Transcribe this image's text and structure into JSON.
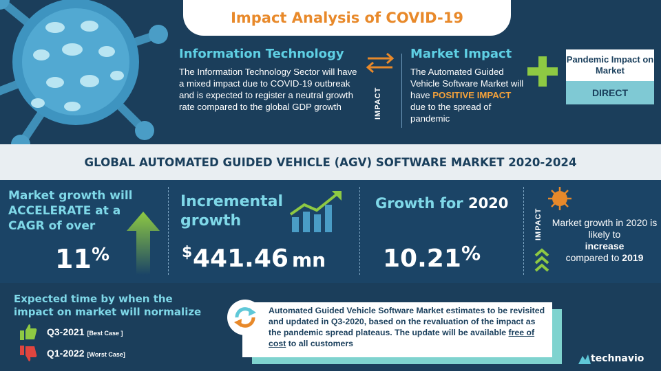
{
  "header": {
    "title": "Impact Analysis of COVID-19"
  },
  "information_technology": {
    "heading": "Information Technology",
    "body": "The Information Technology Sector will have a mixed impact due to COVID-19 outbreak and is expected to register a neutral growth rate compared to the global GDP growth"
  },
  "impact_label": "IMPACT",
  "market_impact": {
    "heading": "Market Impact",
    "body_before": "The Automated Guided Vehicle Software Market will have ",
    "highlight": "POSITIVE IMPACT",
    "body_after": " due to the spread of pandemic"
  },
  "pandemic_box": {
    "label": "Pandemic Impact on Market",
    "value": "DIRECT"
  },
  "report_title": "GLOBAL AUTOMATED GUIDED VEHICLE (AGV) SOFTWARE MARKET 2020-2024",
  "market_growth": {
    "text": "Market growth will ACCELERATE at a CAGR of over",
    "value": "11",
    "unit": "%"
  },
  "incremental_growth": {
    "heading": "Incremental growth",
    "currency": "$",
    "value": "441.46",
    "unit": "mn"
  },
  "growth_2020": {
    "label": "Growth for",
    "year": "2020",
    "value": "10.21",
    "unit": "%"
  },
  "market_outlook": {
    "impact_label": "IMPACT",
    "line1": "Market growth in 2020 is likely to",
    "emphasis": "increase",
    "line2": "compared to",
    "year": "2019"
  },
  "normalize": {
    "heading": "Expected time by when the impact on market will normalize",
    "best": {
      "period": "Q3-2021",
      "note": "[Best Case ]"
    },
    "worst": {
      "period": "Q1-2022",
      "note": "[Worst Case]"
    }
  },
  "note": {
    "text_before": "Automated Guided Vehicle Software Market estimates to be revisited and updated in Q3-2020, based on the revaluation of the impact as the pandemic spread plateaus. The update will be available ",
    "link": "free of cost",
    "text_after": " to all customers"
  },
  "brand": {
    "name": "technavio"
  },
  "colors": {
    "accent_orange": "#e8892a",
    "cyan": "#7fd8e8",
    "green": "#8ec943",
    "navy": "#1a3f5c"
  }
}
